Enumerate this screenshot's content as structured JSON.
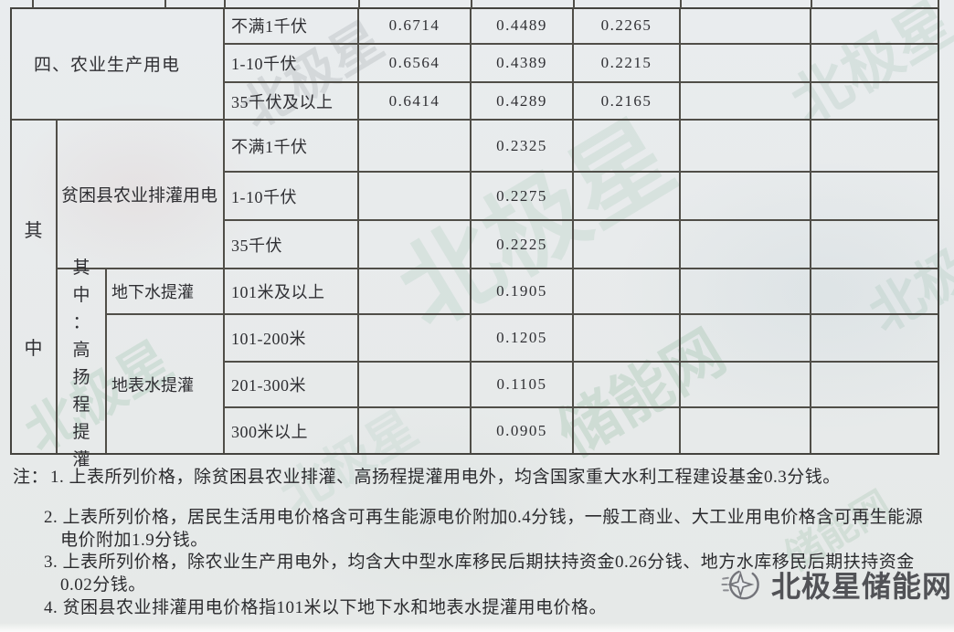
{
  "colors": {
    "paper": "#e8ebed",
    "grid_line": "#504e48",
    "text": "#2f2f33",
    "watermark_teal": "#91bAa8",
    "watermark_green": "#8ab49a",
    "logo_gray": "#515256"
  },
  "table": {
    "sections": [
      {
        "category": "四、农业生产用电",
        "rows": [
          {
            "tier": "不满1千伏",
            "v1": "0.6714",
            "v2": "0.4489",
            "v3": "0.2265"
          },
          {
            "tier": "1-10千伏",
            "v1": "0.6564",
            "v2": "0.4389",
            "v3": "0.2215"
          },
          {
            "tier": "35千伏及以上",
            "v1": "0.6414",
            "v2": "0.4289",
            "v3": "0.2165"
          }
        ]
      },
      {
        "side_label": "其中",
        "category": "贫困县农业排灌用电",
        "rows": [
          {
            "tier": "不满1千伏",
            "v2": "0.2325"
          },
          {
            "tier": "1-10千伏",
            "v2": "0.2275"
          },
          {
            "tier": "35千伏",
            "v2": "0.2225"
          }
        ]
      },
      {
        "sub_label": "其中：高扬程提灌",
        "groups": [
          {
            "name": "地下水提灌",
            "rows": [
              {
                "tier": "101米及以上",
                "v2": "0.1905"
              }
            ]
          },
          {
            "name": "地表水提灌",
            "rows": [
              {
                "tier": "101-200米",
                "v2": "0.1205"
              },
              {
                "tier": "201-300米",
                "v2": "0.1105"
              },
              {
                "tier": "300米以上",
                "v2": "0.0905"
              }
            ]
          }
        ]
      }
    ]
  },
  "notes": {
    "label": "注：",
    "lines": [
      "1. 上表所列价格，除贫困县农业排灌、高扬程提灌用电外，均含国家重大水利工程建设基金0.3分钱。",
      "2. 上表所列价格，居民生活用电价格含可再生能源电价附加0.4分钱，一般工商业、大工业用电价格含可再生能源",
      "电价附加1.9分钱。",
      "3. 上表所列价格，除农业生产用电外，均含大中型水库移民后期扶持资金0.26分钱、地方水库移民后期扶持资金",
      "0.02分钱。",
      "4. 贫困县农业排灌用电价格指101米以下地下水和地表水提灌用电价格。"
    ]
  },
  "logo": {
    "text": "北极星储能网"
  },
  "watermarks": [
    "北极星",
    "北极星",
    "北极星",
    "储能网",
    "北极星",
    "北极",
    "北极星",
    "储能网"
  ]
}
